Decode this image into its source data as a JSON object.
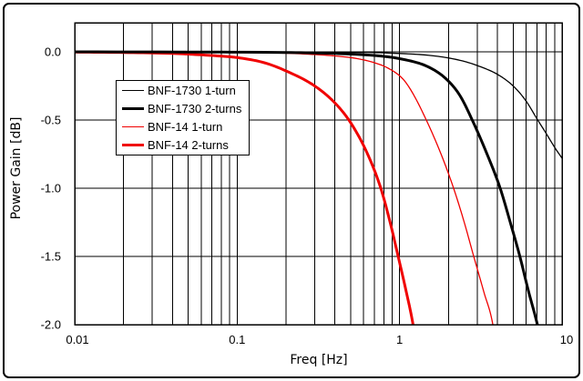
{
  "chart_data": {
    "type": "line",
    "title": "",
    "xlabel": "Freq [Hz]",
    "ylabel": "Power Gain [dB]",
    "x_scale": "log",
    "xlim": [
      0.01,
      10
    ],
    "ylim": [
      -2.0,
      0.0
    ],
    "x_tick_values": [
      0.01,
      0.1,
      1,
      10
    ],
    "x_tick_labels": [
      "0.01",
      "0.1",
      "1",
      "10"
    ],
    "y_tick_values": [
      0.0,
      -0.5,
      -1.0,
      -1.5,
      -2.0
    ],
    "y_tick_labels": [
      "0.0",
      "-0.5",
      "-1.0",
      "-1.5",
      "-2.0"
    ],
    "grid": {
      "x_minor_log": true,
      "y_step": 0.5,
      "color": "#000000"
    },
    "series": [
      {
        "name": "BNF-1730 1-turn",
        "color": "#000000",
        "thickness": "thin",
        "points": [
          [
            0.01,
            0
          ],
          [
            0.5,
            -0.003
          ],
          [
            1,
            -0.012
          ],
          [
            1.5,
            -0.025
          ],
          [
            2,
            -0.045
          ],
          [
            2.5,
            -0.07
          ],
          [
            3,
            -0.1
          ],
          [
            4,
            -0.165
          ],
          [
            5,
            -0.25
          ],
          [
            6,
            -0.36
          ],
          [
            7,
            -0.49
          ],
          [
            8,
            -0.6
          ],
          [
            9,
            -0.7
          ],
          [
            10,
            -0.78
          ]
        ]
      },
      {
        "name": "BNF-1730 2-turns",
        "color": "#000000",
        "thickness": "thick",
        "points": [
          [
            0.01,
            0
          ],
          [
            0.2,
            -0.005
          ],
          [
            0.4,
            -0.012
          ],
          [
            0.7,
            -0.027
          ],
          [
            1.0,
            -0.05
          ],
          [
            1.5,
            -0.11
          ],
          [
            1.94,
            -0.2
          ],
          [
            2.35,
            -0.32
          ],
          [
            2.8,
            -0.5
          ],
          [
            3.4,
            -0.73
          ],
          [
            4.16,
            -1.0
          ],
          [
            4.8,
            -1.25
          ],
          [
            5.5,
            -1.5
          ],
          [
            6.2,
            -1.75
          ],
          [
            7.05,
            -2.0
          ],
          [
            7.5,
            -2.15
          ]
        ]
      },
      {
        "name": "BNF-14 1-turn",
        "color": "#f00000",
        "thickness": "thin",
        "points": [
          [
            0.01,
            0
          ],
          [
            0.1,
            -0.005
          ],
          [
            0.2,
            -0.01
          ],
          [
            0.3,
            -0.02
          ],
          [
            0.4,
            -0.03
          ],
          [
            0.55,
            -0.05
          ],
          [
            0.7,
            -0.08
          ],
          [
            0.85,
            -0.12
          ],
          [
            1.05,
            -0.2
          ],
          [
            1.2,
            -0.3
          ],
          [
            1.46,
            -0.5
          ],
          [
            1.8,
            -0.75
          ],
          [
            2.15,
            -1.0
          ],
          [
            2.5,
            -1.25
          ],
          [
            2.86,
            -1.5
          ],
          [
            3.3,
            -1.76
          ],
          [
            3.75,
            -2.0
          ],
          [
            3.95,
            -2.2
          ]
        ]
      },
      {
        "name": "BNF-14 2-turns",
        "color": "#f00000",
        "thickness": "thick",
        "points": [
          [
            0.01,
            -0.002
          ],
          [
            0.02,
            -0.005
          ],
          [
            0.04,
            -0.012
          ],
          [
            0.06,
            -0.022
          ],
          [
            0.08,
            -0.032
          ],
          [
            0.1,
            -0.042
          ],
          [
            0.147,
            -0.08
          ],
          [
            0.2,
            -0.14
          ],
          [
            0.3,
            -0.25
          ],
          [
            0.4,
            -0.375
          ],
          [
            0.5,
            -0.52
          ],
          [
            0.63,
            -0.74
          ],
          [
            0.766,
            -1.0
          ],
          [
            0.87,
            -1.24
          ],
          [
            0.98,
            -1.5
          ],
          [
            1.09,
            -1.74
          ],
          [
            1.21,
            -2.0
          ],
          [
            1.28,
            -2.2
          ]
        ]
      }
    ],
    "legend": {
      "position": "upper-left-inside"
    }
  },
  "style": {
    "axis_color": "#000000",
    "background": "#ffffff",
    "thin_width": 1.3,
    "thick_width": 3
  }
}
